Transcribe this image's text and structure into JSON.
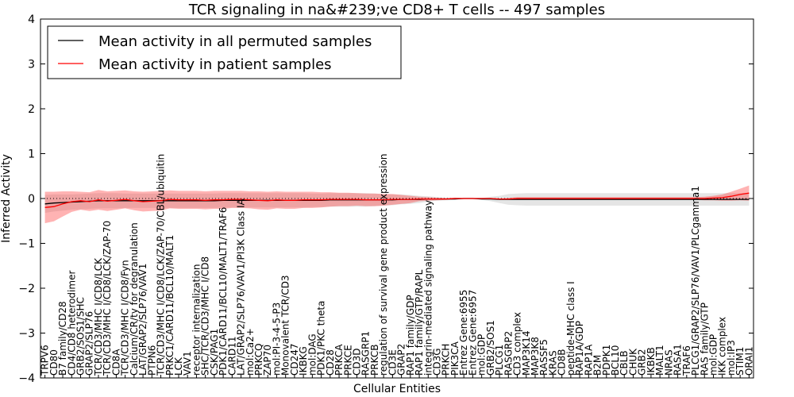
{
  "chart_data": {
    "type": "line",
    "title": "TCR signaling in na&#239;ve CD8+ T cells -- 497 samples",
    "xlabel": "Cellular Entities",
    "ylabel": "Inferred Activity",
    "ylim": [
      -4,
      4
    ],
    "yticks": [
      -4,
      -3,
      -2,
      -1,
      0,
      1,
      2,
      3,
      4
    ],
    "legend": {
      "placement": "top-left"
    },
    "categories": [
      "TRPV6",
      "CD80",
      "B7 family/CD28",
      "CD4/CD8 heterodimer",
      "GRB2/SOS1/SHC",
      "GRAP2/SLP76",
      "TCR/CD3/MHC I/CD8/LCK",
      "TCR/CD3/MHC I/CD8/LCK/ZAP-70",
      "CD8A",
      "TCR/CD3/MHC I/CD8/Fyn",
      "Calcium/CR/ty for degranulation",
      "LAT/GRAP2/SLP76/VAV1",
      "PTPN6",
      "TCR/CD3/MHC I/CD8/LCK/ZAP-70/CBL/ubiquitin",
      "PRKC1/CARD11/BCL10/MALT1",
      "LCK",
      "VAV1",
      "receptor internalization",
      "SHC/TCR/CD3/MHC I/CD8",
      "CSK/PAG1",
      "PDK1/CARD11/BCL10/MALT1/TRAF6",
      "CARD11",
      "LAT/GRAP2/SLP76/VAV1/PI3K Class IA",
      "mol:Ca2+",
      "PRKCQ",
      "ZAP70",
      "mol:PI-3-4-5-P3",
      "Monovalent TCR/CD3",
      "CD247",
      "IKBKG",
      "mol:DAG",
      "PDK1/PKC theta",
      "CD28",
      "PRKCA",
      "PRKCE",
      "CD3D",
      "RASGRP1",
      "PRKCB",
      "regulation of survival gene product expression",
      "CD3E",
      "GRAP2",
      "RAP1 family/GDP",
      "RAP1 family/GTP/RAPL",
      "integrin-mediated signaling pathway",
      "CD3G",
      "PRKCH",
      "PIK3CA",
      "Entrez Gene:6955",
      "Entrez Gene:6957",
      "mol:GDP",
      "GRB2/SOS1",
      "PLCG1",
      "RASGRP2",
      "CD3 complex",
      "MAP3K14",
      "MAP3K8",
      "RASSF5",
      "KRAS",
      "CD8B",
      "peptide-MHC class I",
      "RAP1A/GDP",
      "RAP1A",
      "B2M",
      "PDPK1",
      "BCL10",
      "CBLB",
      "CHUK",
      "GRB2",
      "IKBKB",
      "MALT1",
      "NRAS",
      "RASA1",
      "TRAF6",
      "PLCG1/GRAP2/SLP76/VAV1/PLCgamma1",
      "RAS family/GTP",
      "mol:GDP",
      "IKK complex",
      "mol:IP3",
      "STIM1",
      "ORAI1"
    ],
    "series": [
      {
        "name": "Mean activity in all permuted samples",
        "color": "#000000",
        "values": [
          -0.12,
          -0.1,
          -0.09,
          -0.08,
          -0.07,
          -0.06,
          -0.05,
          -0.05,
          -0.05,
          -0.05,
          -0.05,
          -0.05,
          -0.05,
          -0.05,
          -0.05,
          -0.05,
          -0.05,
          -0.05,
          -0.05,
          -0.05,
          -0.04,
          -0.04,
          -0.04,
          -0.04,
          -0.04,
          -0.04,
          -0.04,
          -0.04,
          -0.04,
          -0.04,
          -0.04,
          -0.04,
          -0.03,
          -0.03,
          -0.03,
          -0.03,
          -0.03,
          -0.03,
          -0.03,
          -0.03,
          -0.02,
          -0.02,
          -0.02,
          -0.01,
          -0.01,
          -0.01,
          -0.01,
          0.0,
          0.0,
          -0.01,
          -0.01,
          -0.02,
          -0.02,
          -0.02,
          -0.02,
          -0.02,
          -0.02,
          -0.02,
          -0.02,
          -0.02,
          -0.02,
          -0.02,
          -0.02,
          -0.02,
          -0.02,
          -0.02,
          -0.02,
          -0.02,
          -0.02,
          -0.02,
          -0.02,
          -0.02,
          -0.02,
          -0.02,
          -0.02,
          -0.02,
          -0.02,
          -0.02,
          -0.02,
          -0.02
        ],
        "spread": [
          0.2,
          0.19,
          0.18,
          0.17,
          0.17,
          0.17,
          0.17,
          0.17,
          0.17,
          0.16,
          0.16,
          0.16,
          0.16,
          0.16,
          0.16,
          0.16,
          0.16,
          0.16,
          0.16,
          0.16,
          0.16,
          0.16,
          0.16,
          0.16,
          0.16,
          0.16,
          0.16,
          0.16,
          0.16,
          0.16,
          0.15,
          0.15,
          0.15,
          0.15,
          0.15,
          0.15,
          0.15,
          0.14,
          0.13,
          0.12,
          0.11,
          0.1,
          0.08,
          0.06,
          0.04,
          0.03,
          0.02,
          0.015,
          0.015,
          0.02,
          0.05,
          0.08,
          0.12,
          0.13,
          0.14,
          0.14,
          0.14,
          0.14,
          0.14,
          0.14,
          0.14,
          0.14,
          0.14,
          0.14,
          0.14,
          0.14,
          0.14,
          0.14,
          0.14,
          0.14,
          0.14,
          0.14,
          0.14,
          0.14,
          0.14,
          0.14,
          0.14,
          0.14,
          0.14,
          0.14
        ]
      },
      {
        "name": "Mean activity in patient samples",
        "color": "#ff0000",
        "values": [
          -0.2,
          -0.18,
          -0.12,
          -0.07,
          -0.05,
          -0.07,
          -0.03,
          -0.06,
          -0.04,
          -0.02,
          -0.05,
          -0.07,
          -0.06,
          -0.05,
          -0.02,
          -0.03,
          -0.03,
          -0.03,
          -0.04,
          -0.03,
          -0.03,
          -0.02,
          -0.02,
          -0.03,
          -0.04,
          -0.05,
          -0.03,
          -0.04,
          -0.04,
          -0.03,
          -0.03,
          -0.03,
          -0.02,
          -0.02,
          -0.02,
          -0.02,
          -0.03,
          -0.03,
          -0.03,
          -0.02,
          -0.02,
          -0.02,
          -0.01,
          -0.01,
          -0.01,
          -0.01,
          0.0,
          0.0,
          0.0,
          0.0,
          0.0,
          -0.01,
          -0.01,
          0.0,
          0.0,
          0.0,
          0.0,
          0.0,
          0.0,
          0.0,
          0.0,
          0.0,
          0.0,
          0.0,
          0.0,
          0.0,
          0.0,
          0.0,
          0.0,
          0.0,
          0.0,
          0.0,
          0.0,
          0.0,
          0.0,
          0.01,
          0.02,
          0.05,
          0.09,
          0.12
        ],
        "spread": [
          0.35,
          0.33,
          0.28,
          0.23,
          0.2,
          0.21,
          0.22,
          0.22,
          0.21,
          0.2,
          0.21,
          0.22,
          0.22,
          0.22,
          0.2,
          0.2,
          0.2,
          0.2,
          0.2,
          0.2,
          0.2,
          0.19,
          0.19,
          0.19,
          0.2,
          0.2,
          0.19,
          0.19,
          0.19,
          0.18,
          0.18,
          0.17,
          0.16,
          0.15,
          0.15,
          0.14,
          0.14,
          0.14,
          0.13,
          0.12,
          0.1,
          0.08,
          0.05,
          0.04,
          0.03,
          0.02,
          0.02,
          0.01,
          0.01,
          0.01,
          0.01,
          0.01,
          0.02,
          0.03,
          0.03,
          0.03,
          0.03,
          0.03,
          0.03,
          0.03,
          0.03,
          0.03,
          0.03,
          0.03,
          0.03,
          0.03,
          0.03,
          0.03,
          0.03,
          0.03,
          0.03,
          0.03,
          0.03,
          0.03,
          0.04,
          0.05,
          0.07,
          0.1,
          0.13,
          0.17
        ]
      }
    ],
    "reference_line": {
      "y": 0,
      "style": "dotted"
    }
  }
}
